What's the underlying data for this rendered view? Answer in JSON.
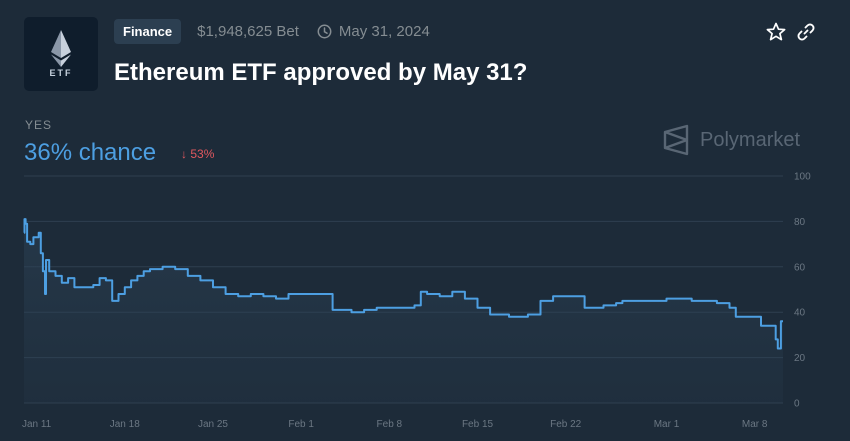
{
  "market": {
    "logo_label": "ETF",
    "logo_icon": "ethereum-icon",
    "category": "Finance",
    "volume": "$1,948,625 Bet",
    "end_date": "May 31, 2024",
    "title": "Ethereum ETF approved by May 31?"
  },
  "summary": {
    "outcome": "YES",
    "chance": "36% chance",
    "change": "53%",
    "change_direction": "down",
    "brand": "Polymarket"
  },
  "colors": {
    "accent": "#4d9fe2",
    "negative": "#e2585f",
    "background": "#1d2b39"
  },
  "chart_data": {
    "type": "line",
    "x_ticks": [
      "Jan 11",
      "Jan 18",
      "Jan 25",
      "Feb 1",
      "Feb 8",
      "Feb 15",
      "Feb 22",
      "Mar 1",
      "Mar 8"
    ],
    "y_ticks": [
      "100",
      "80",
      "60",
      "40",
      "20",
      "0"
    ],
    "ylim": [
      0,
      100
    ],
    "grid": true,
    "series": [
      {
        "points": [
          [
            "2024-01-10T00:00",
            75
          ],
          [
            "2024-01-10T01:00",
            81
          ],
          [
            "2024-01-10T03:00",
            79
          ],
          [
            "2024-01-10T06:00",
            71
          ],
          [
            "2024-01-10T12:00",
            70
          ],
          [
            "2024-01-10T18:00",
            73
          ],
          [
            "2024-01-11T00:00",
            73
          ],
          [
            "2024-01-11T04:00",
            75
          ],
          [
            "2024-01-11T08:00",
            66
          ],
          [
            "2024-01-11T12:00",
            58
          ],
          [
            "2024-01-11T16:00",
            48
          ],
          [
            "2024-01-11T18:00",
            63
          ],
          [
            "2024-01-12T00:00",
            58
          ],
          [
            "2024-01-12T12:00",
            56
          ],
          [
            "2024-01-13T00:00",
            53
          ],
          [
            "2024-01-13T12:00",
            55
          ],
          [
            "2024-01-14T00:00",
            51
          ],
          [
            "2024-01-15T00:00",
            51
          ],
          [
            "2024-01-15T12:00",
            52
          ],
          [
            "2024-01-16T00:00",
            55
          ],
          [
            "2024-01-16T12:00",
            54
          ],
          [
            "2024-01-17T00:00",
            45
          ],
          [
            "2024-01-17T12:00",
            48
          ],
          [
            "2024-01-18T00:00",
            51
          ],
          [
            "2024-01-18T12:00",
            54
          ],
          [
            "2024-01-19T00:00",
            56
          ],
          [
            "2024-01-19T12:00",
            58
          ],
          [
            "2024-01-20T00:00",
            59
          ],
          [
            "2024-01-21T00:00",
            60
          ],
          [
            "2024-01-22T00:00",
            59
          ],
          [
            "2024-01-23T00:00",
            56
          ],
          [
            "2024-01-24T00:00",
            54
          ],
          [
            "2024-01-25T00:00",
            51
          ],
          [
            "2024-01-26T00:00",
            48
          ],
          [
            "2024-01-27T00:00",
            47
          ],
          [
            "2024-01-28T00:00",
            48
          ],
          [
            "2024-01-29T00:00",
            47
          ],
          [
            "2024-01-30T00:00",
            46
          ],
          [
            "2024-01-31T00:00",
            48
          ],
          [
            "2024-02-02T00:00",
            48
          ],
          [
            "2024-02-03T00:00",
            48
          ],
          [
            "2024-02-03T12:00",
            41
          ],
          [
            "2024-02-05T00:00",
            40
          ],
          [
            "2024-02-06T00:00",
            41
          ],
          [
            "2024-02-07T00:00",
            42
          ],
          [
            "2024-02-09T00:00",
            42
          ],
          [
            "2024-02-10T00:00",
            43
          ],
          [
            "2024-02-10T12:00",
            49
          ],
          [
            "2024-02-11T00:00",
            48
          ],
          [
            "2024-02-12T00:00",
            47
          ],
          [
            "2024-02-13T00:00",
            49
          ],
          [
            "2024-02-14T00:00",
            46
          ],
          [
            "2024-02-15T00:00",
            42
          ],
          [
            "2024-02-16T00:00",
            39
          ],
          [
            "2024-02-17T12:00",
            38
          ],
          [
            "2024-02-19T00:00",
            39
          ],
          [
            "2024-02-20T00:00",
            45
          ],
          [
            "2024-02-21T00:00",
            47
          ],
          [
            "2024-02-23T00:00",
            47
          ],
          [
            "2024-02-23T12:00",
            42
          ],
          [
            "2024-02-25T00:00",
            43
          ],
          [
            "2024-02-26T00:00",
            44
          ],
          [
            "2024-02-26T12:00",
            45
          ],
          [
            "2024-02-29T00:00",
            45
          ],
          [
            "2024-03-01T00:00",
            46
          ],
          [
            "2024-03-03T00:00",
            45
          ],
          [
            "2024-03-05T00:00",
            44
          ],
          [
            "2024-03-06T00:00",
            42
          ],
          [
            "2024-03-06T12:00",
            38
          ],
          [
            "2024-03-08T00:00",
            38
          ],
          [
            "2024-03-08T12:00",
            34
          ],
          [
            "2024-03-09T12:00",
            34
          ],
          [
            "2024-03-09T16:00",
            28
          ],
          [
            "2024-03-09T20:00",
            24
          ],
          [
            "2024-03-10T00:00",
            24
          ],
          [
            "2024-03-10T02:00",
            36
          ],
          [
            "2024-03-10T06:00",
            36
          ]
        ]
      }
    ]
  }
}
